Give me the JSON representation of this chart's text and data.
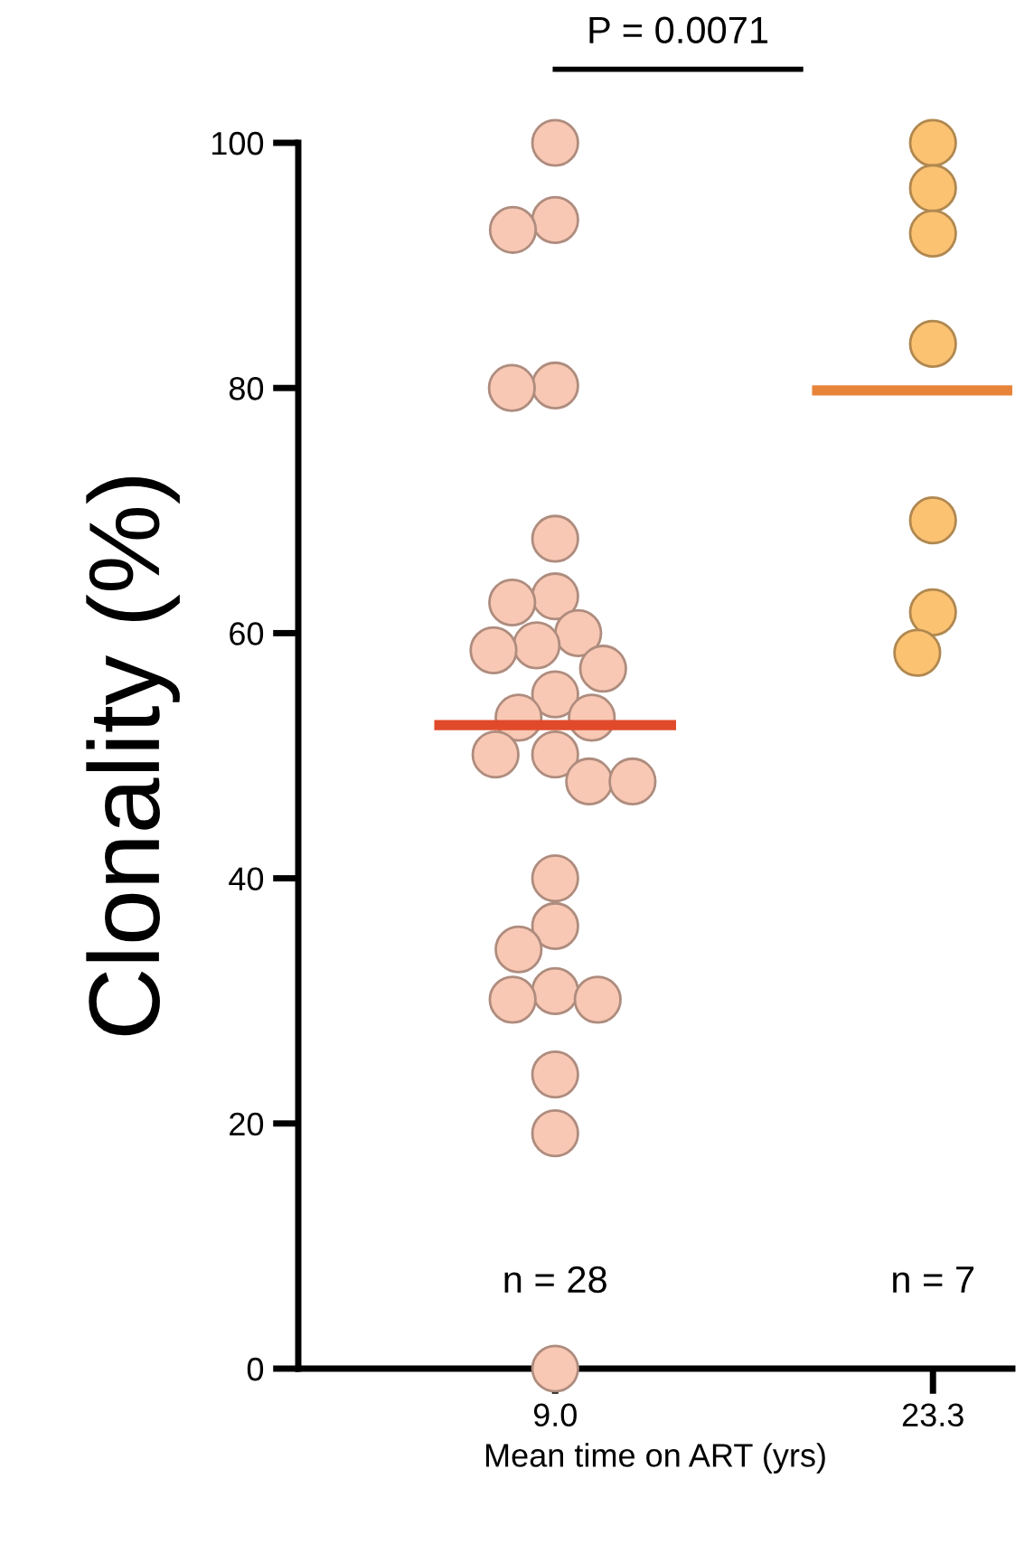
{
  "chart_data": {
    "type": "scatter",
    "ylabel": "Clonality (%)",
    "xlabel": "Mean time on ART (yrs)",
    "categories": [
      "9.0",
      "23.3"
    ],
    "ylim": [
      0,
      100
    ],
    "yticks": [
      0,
      20,
      40,
      60,
      80,
      100
    ],
    "grid": false,
    "legend": false,
    "marker": "circle",
    "ref_lines": [
      {
        "axis": "y",
        "value": 52.5,
        "color": "#e04a2a"
      },
      {
        "axis": "y",
        "value": 79.8,
        "color": "#e8843a"
      }
    ],
    "series": [
      {
        "color": "#f8c8b4",
        "x": [
          "9.0",
          "9.0",
          "9.0",
          "9.0",
          "9.0",
          "9.0",
          "9.0",
          "9.0",
          "9.0",
          "9.0",
          "9.0",
          "9.0",
          "9.0",
          "9.0",
          "9.0",
          "9.0",
          "9.0",
          "9.0",
          "9.0",
          "9.0",
          "9.0",
          "9.0",
          "9.0",
          "9.0",
          "9.0",
          "9.0",
          "9.0",
          "9.0"
        ],
        "values": [
          100,
          93.7,
          92.9,
          80.2,
          80,
          67.7,
          63,
          62.5,
          60,
          59,
          58.6,
          57.1,
          55,
          53.1,
          53.1,
          50.1,
          50.1,
          47.9,
          47.9,
          40,
          36.1,
          34.2,
          30.8,
          30.1,
          30.1,
          24,
          19.2,
          0
        ]
      },
      {
        "color": "#fbc272",
        "x": [
          "23.3",
          "23.3",
          "23.3",
          "23.3",
          "23.3",
          "23.3",
          "23.3"
        ],
        "values": [
          100,
          96.3,
          92.6,
          83.6,
          69.2,
          61.7,
          58.4
        ]
      }
    ],
    "annotations": [
      "P = 0.0071",
      "n = 28",
      "n = 7"
    ]
  }
}
